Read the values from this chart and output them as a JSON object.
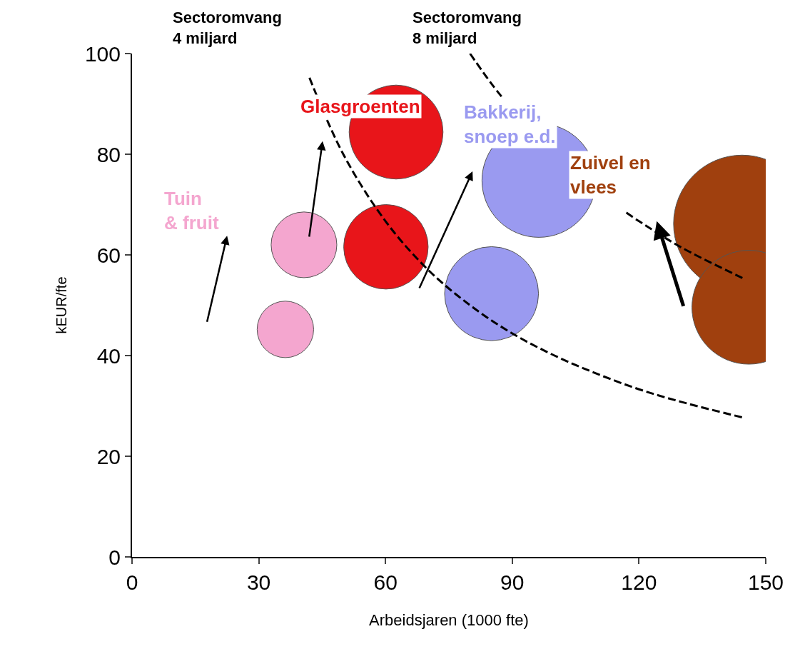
{
  "chart_data": {
    "type": "bubble",
    "xlabel": "Arbeidsjaren (1000 fte)",
    "ylabel": "kEUR/fte",
    "xlim": [
      0,
      150
    ],
    "xticks": [
      0,
      30,
      60,
      90,
      120,
      150
    ],
    "ylim": [
      0,
      100
    ],
    "yticks": [
      0,
      20,
      40,
      60,
      80,
      100
    ],
    "annotations": [
      "Sectoromvang\n4 miljard",
      "Sectoromvang\n8 miljard"
    ],
    "series": [
      {
        "name": "Tuin\n& fruit",
        "color": "#f4a6cf",
        "x": [
          36.3,
          40.7
        ],
        "values": [
          45.2,
          62.0
        ],
        "sizes": [
          0.17,
          0.23
        ]
      },
      {
        "name": "Glasgroenten",
        "color": "#e8151a",
        "x": [
          62.5,
          60.1
        ],
        "values": [
          84.4,
          61.6
        ],
        "sizes": [
          0.47,
          0.38
        ]
      },
      {
        "name": "Bakkerij,\nsnoep e.d.",
        "color": "#9a9af0",
        "x": [
          85.1,
          96.3
        ],
        "values": [
          52.3,
          74.8
        ],
        "sizes": [
          0.47,
          0.69
        ]
      },
      {
        "name": "Zuivel en\nvlees",
        "color": "#a0400e",
        "x": [
          144.4,
          146.0
        ],
        "values": [
          66.2,
          49.6
        ],
        "sizes": [
          1,
          0.69
        ]
      },
      {
        "type": "line",
        "color": "#000000",
        "line_style": "dashed",
        "x": [
          42,
          50,
          60,
          70,
          80,
          90,
          100,
          110,
          120,
          130,
          145
        ],
        "values": [
          95.2,
          80,
          66.7,
          57.1,
          50,
          44.4,
          40,
          36.4,
          33.3,
          30.8,
          27.6
        ]
      },
      {
        "type": "line",
        "color": "#000000",
        "line_style": "dashed",
        "x": [
          80,
          85,
          88,
          95,
          117,
          120,
          130,
          145
        ],
        "values": [
          100,
          94.1,
          90.9,
          null,
          68.4,
          66.7,
          61.5,
          55.2
        ]
      }
    ]
  }
}
